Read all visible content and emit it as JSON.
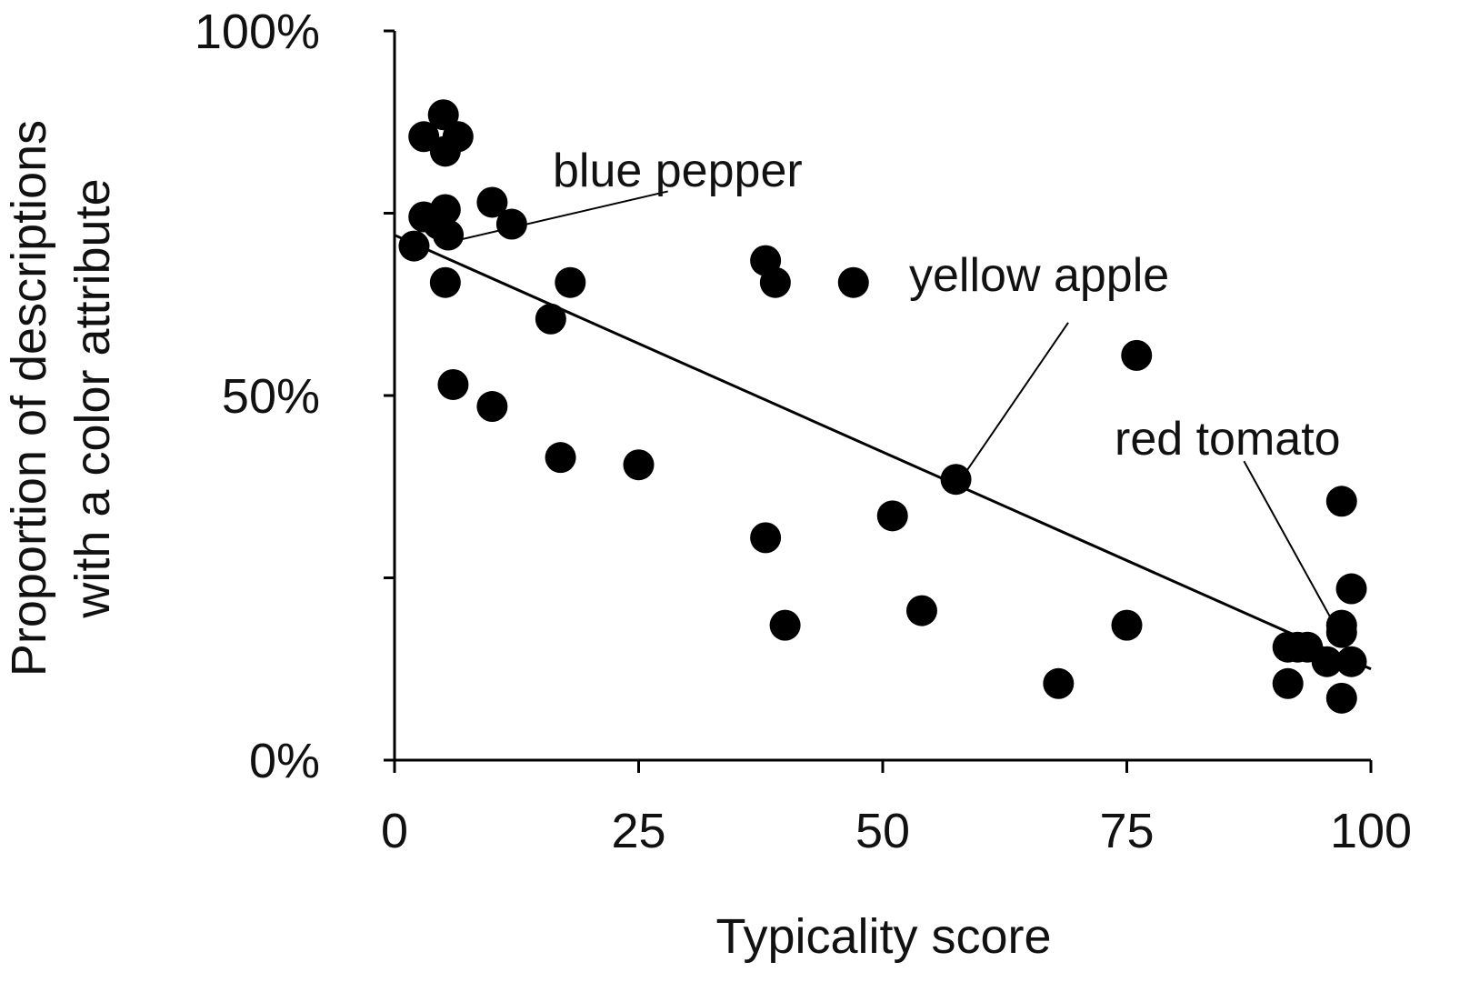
{
  "chart_data": {
    "type": "scatter",
    "xlabel": "Typicality score",
    "ylabel_lines": [
      "Proportion of descriptions",
      "with a color attribute"
    ],
    "xlim": [
      0,
      100
    ],
    "ylim": [
      0,
      100
    ],
    "x_ticks": [
      0,
      25,
      50,
      75,
      100
    ],
    "x_tick_labels": [
      "0",
      "25",
      "50",
      "75",
      "100"
    ],
    "y_ticks": [
      0,
      25,
      50,
      75,
      100
    ],
    "y_tick_labels": [
      "0%",
      "",
      "50%",
      "",
      "100%"
    ],
    "grid": false,
    "legend": "none",
    "marker_color": "#000000",
    "points": [
      {
        "x": 3,
        "y": 85.5
      },
      {
        "x": 5,
        "y": 88.5
      },
      {
        "x": 6.5,
        "y": 85.5
      },
      {
        "x": 5.2,
        "y": 83.5
      },
      {
        "x": 10,
        "y": 76.5
      },
      {
        "x": 5.2,
        "y": 75.5
      },
      {
        "x": 3,
        "y": 74.5
      },
      {
        "x": 4.5,
        "y": 73.5
      },
      {
        "x": 12,
        "y": 73.5
      },
      {
        "x": 2,
        "y": 70.5
      },
      {
        "x": 5.5,
        "y": 72
      },
      {
        "x": 5.2,
        "y": 65.5
      },
      {
        "x": 18,
        "y": 65.5
      },
      {
        "x": 16,
        "y": 60.5
      },
      {
        "x": 6,
        "y": 51.5
      },
      {
        "x": 10,
        "y": 48.5
      },
      {
        "x": 17,
        "y": 41.5
      },
      {
        "x": 25,
        "y": 40.5
      },
      {
        "x": 38,
        "y": 68.5
      },
      {
        "x": 39,
        "y": 65.5
      },
      {
        "x": 47,
        "y": 65.5
      },
      {
        "x": 76,
        "y": 55.5
      },
      {
        "x": 57.5,
        "y": 38.5
      },
      {
        "x": 51,
        "y": 33.5
      },
      {
        "x": 38,
        "y": 30.5
      },
      {
        "x": 40,
        "y": 18.5
      },
      {
        "x": 54,
        "y": 20.5
      },
      {
        "x": 75,
        "y": 18.5
      },
      {
        "x": 68,
        "y": 10.5
      },
      {
        "x": 97,
        "y": 35.5
      },
      {
        "x": 98,
        "y": 23.5
      },
      {
        "x": 97,
        "y": 18.5
      },
      {
        "x": 97,
        "y": 17.5
      },
      {
        "x": 91.5,
        "y": 15.5
      },
      {
        "x": 92.5,
        "y": 15.5
      },
      {
        "x": 93.5,
        "y": 15.5
      },
      {
        "x": 95.5,
        "y": 13.5
      },
      {
        "x": 98,
        "y": 13.5
      },
      {
        "x": 91.5,
        "y": 10.5
      },
      {
        "x": 97,
        "y": 8.5
      }
    ],
    "trend_line": {
      "x": [
        0,
        100
      ],
      "y": [
        72,
        12.5
      ]
    },
    "annotations": [
      {
        "text": "blue pepper",
        "point": [
          5.5,
          71
        ],
        "label_at": [
          28,
          78
        ]
      },
      {
        "text": "yellow apple",
        "point": [
          58,
          38.5
        ],
        "label_at": [
          69,
          60
        ]
      },
      {
        "text": "red tomato",
        "point": [
          96.5,
          18
        ],
        "label_at": [
          87,
          41
        ]
      }
    ]
  }
}
